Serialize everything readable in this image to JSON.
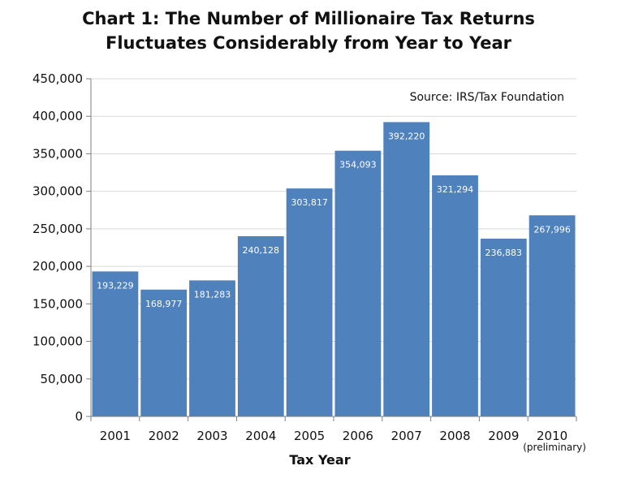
{
  "chart_data": {
    "type": "bar",
    "title_lines": [
      "Chart 1: The Number of Millionaire Tax Returns",
      "Fluctuates Considerably from Year to Year"
    ],
    "source": "Source: IRS/Tax Foundation",
    "xlabel": "Tax Year",
    "ylabel": "",
    "categories": [
      "2001",
      "2002",
      "2003",
      "2004",
      "2005",
      "2006",
      "2007",
      "2008",
      "2009",
      "2010"
    ],
    "category_notes": {
      "2010": "(preliminary)"
    },
    "values": [
      193229,
      168977,
      181283,
      240128,
      303817,
      354093,
      392220,
      321294,
      236883,
      267996
    ],
    "data_labels": [
      "193,229",
      "168,977",
      "181,283",
      "240,128",
      "303,817",
      "354,093",
      "392,220",
      "321,294",
      "236,883",
      "267,996"
    ],
    "ylim": [
      0,
      450000
    ],
    "yticks": [
      0,
      50000,
      100000,
      150000,
      200000,
      250000,
      300000,
      350000,
      400000,
      450000
    ],
    "ytick_labels": [
      "0",
      "50,000",
      "100,000",
      "150,000",
      "200,000",
      "250,000",
      "300,000",
      "350,000",
      "400,000",
      "450,000"
    ],
    "grid": true,
    "legend": "none",
    "bar_color": "#4f81bd",
    "grid_color": "#d9d9d9"
  }
}
